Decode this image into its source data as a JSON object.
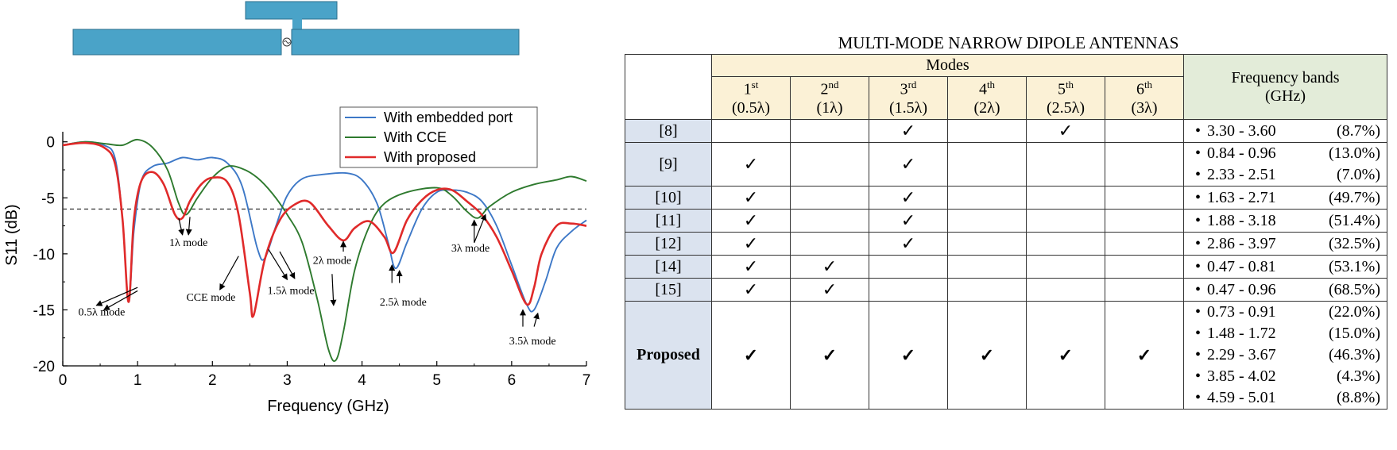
{
  "chart_data": {
    "type": "line",
    "xlabel": "Frequency (GHz)",
    "ylabel": "S11 (dB)",
    "xlim": [
      0,
      7
    ],
    "ylim": [
      -20,
      1
    ],
    "xticks": [
      "0",
      "1",
      "2",
      "3",
      "4",
      "5",
      "6",
      "7"
    ],
    "yticks": [
      "0",
      "-5",
      "-10",
      "-15",
      "-20"
    ],
    "threshold": -6,
    "legend_position": "top-right",
    "series": [
      {
        "name": "With embedded port",
        "color": "#3d78c7",
        "x": [
          0,
          0.3,
          0.55,
          0.7,
          0.8,
          0.88,
          0.95,
          1.05,
          1.2,
          1.4,
          1.6,
          1.8,
          2.0,
          2.2,
          2.4,
          2.6,
          2.7,
          2.85,
          3.0,
          3.2,
          3.5,
          3.8,
          4.0,
          4.2,
          4.35,
          4.45,
          4.6,
          4.8,
          5.0,
          5.2,
          5.4,
          5.6,
          5.8,
          6.0,
          6.2,
          6.3,
          6.45,
          6.6,
          6.8,
          7.0
        ],
        "y": [
          -0.3,
          0,
          -0.3,
          -1.5,
          -7,
          -14.3,
          -8,
          -3.5,
          -2.2,
          -1.9,
          -1.4,
          -1.6,
          -1.4,
          -1.9,
          -4,
          -9.5,
          -10.4,
          -7.5,
          -4.8,
          -3.3,
          -2.9,
          -2.8,
          -3.4,
          -5.5,
          -9,
          -11.3,
          -9,
          -6,
          -4.5,
          -4.3,
          -4.5,
          -5.3,
          -7.5,
          -11,
          -14.5,
          -15,
          -12.5,
          -9.5,
          -8,
          -7
        ]
      },
      {
        "name": "With CCE",
        "color": "#2e7a2e",
        "x": [
          0,
          0.3,
          0.6,
          0.8,
          1.0,
          1.2,
          1.4,
          1.55,
          1.65,
          1.8,
          2.0,
          2.2,
          2.4,
          2.6,
          2.8,
          3.0,
          3.2,
          3.4,
          3.55,
          3.65,
          3.75,
          3.9,
          4.1,
          4.3,
          4.6,
          5.0,
          5.2,
          5.4,
          5.55,
          5.7,
          6.0,
          6.3,
          6.6,
          6.8,
          7.0
        ],
        "y": [
          -0.3,
          0,
          -0.2,
          -0.3,
          0.2,
          -0.5,
          -2.5,
          -5.5,
          -6.5,
          -5,
          -3.2,
          -2.2,
          -2.4,
          -3.2,
          -4.6,
          -6.5,
          -9,
          -14,
          -18.5,
          -19.5,
          -17,
          -11.5,
          -7.5,
          -5.5,
          -4.5,
          -4.1,
          -4.8,
          -6.2,
          -6.8,
          -5.8,
          -4.5,
          -3.8,
          -3.4,
          -3.1,
          -3.5
        ]
      },
      {
        "name": "With proposed",
        "color": "#e02a2a",
        "x": [
          0,
          0.3,
          0.55,
          0.7,
          0.8,
          0.88,
          0.95,
          1.05,
          1.2,
          1.35,
          1.5,
          1.6,
          1.7,
          1.85,
          2.0,
          2.2,
          2.35,
          2.5,
          2.55,
          2.7,
          2.9,
          3.1,
          3.3,
          3.55,
          3.75,
          3.9,
          4.1,
          4.3,
          4.42,
          4.6,
          4.8,
          5.0,
          5.2,
          5.4,
          5.6,
          5.8,
          6.0,
          6.2,
          6.3,
          6.4,
          6.6,
          6.8,
          7.0
        ],
        "y": [
          -0.3,
          -0.1,
          -0.5,
          -2,
          -7,
          -14.3,
          -7,
          -3.5,
          -2.7,
          -3.8,
          -6.5,
          -6.8,
          -5.3,
          -3.8,
          -3.2,
          -3.6,
          -6.5,
          -13.5,
          -15.5,
          -10.5,
          -7,
          -5.6,
          -5.4,
          -7.5,
          -8.8,
          -7.7,
          -7.1,
          -8.5,
          -9.9,
          -7,
          -5.2,
          -4.3,
          -4.3,
          -5.3,
          -6.5,
          -8.5,
          -11.5,
          -14.5,
          -13,
          -10,
          -7.5,
          -7.3,
          -7.5
        ]
      }
    ],
    "annotations": [
      {
        "text": "0.5λ mode",
        "x": 0.52,
        "y": -15.5
      },
      {
        "text": "1λ mode",
        "x": 1.68,
        "y": -9.3
      },
      {
        "text": "CCE mode",
        "x": 1.98,
        "y": -14.2
      },
      {
        "text": "1.5λ mode",
        "x": 3.05,
        "y": -13.6
      },
      {
        "text": "2λ mode",
        "x": 3.6,
        "y": -10.9
      },
      {
        "text": "2.5λ mode",
        "x": 4.55,
        "y": -14.6
      },
      {
        "text": "3λ mode",
        "x": 5.45,
        "y": -9.8
      },
      {
        "text": "3.5λ mode",
        "x": 6.28,
        "y": -18.1
      }
    ]
  },
  "table": {
    "title": "MULTI-MODE NARROW DIPOLE ANTENNAS",
    "modes_header": "Modes",
    "freq_header_line1": "Frequency bands",
    "freq_header_line2": "(GHz)",
    "mode_columns": [
      {
        "ord": "1",
        "sup": "st",
        "sub": "(0.5λ)"
      },
      {
        "ord": "2",
        "sup": "nd",
        "sub": "(1λ)"
      },
      {
        "ord": "3",
        "sup": "rd",
        "sub": "(1.5λ)"
      },
      {
        "ord": "4",
        "sup": "th",
        "sub": "(2λ)"
      },
      {
        "ord": "5",
        "sup": "th",
        "sub": "(2.5λ)"
      },
      {
        "ord": "6",
        "sup": "th",
        "sub": "(3λ)"
      }
    ],
    "check_mark": "✓",
    "bullet": "•",
    "rows": [
      {
        "ref": "[8]",
        "modes": [
          false,
          false,
          true,
          false,
          true,
          false
        ],
        "bands": [
          [
            "3.30 - 3.60",
            "(8.7%)"
          ]
        ]
      },
      {
        "ref": "[9]",
        "modes": [
          true,
          false,
          true,
          false,
          false,
          false
        ],
        "bands": [
          [
            "0.84 - 0.96",
            "(13.0%)"
          ],
          [
            "2.33 - 2.51",
            "(7.0%)"
          ]
        ]
      },
      {
        "ref": "[10]",
        "modes": [
          true,
          false,
          true,
          false,
          false,
          false
        ],
        "bands": [
          [
            "1.63 - 2.71",
            "(49.7%)"
          ]
        ]
      },
      {
        "ref": "[11]",
        "modes": [
          true,
          false,
          true,
          false,
          false,
          false
        ],
        "bands": [
          [
            "1.88 - 3.18",
            "(51.4%)"
          ]
        ]
      },
      {
        "ref": "[12]",
        "modes": [
          true,
          false,
          true,
          false,
          false,
          false
        ],
        "bands": [
          [
            "2.86 - 3.97",
            "(32.5%)"
          ]
        ]
      },
      {
        "ref": "[14]",
        "modes": [
          true,
          true,
          false,
          false,
          false,
          false
        ],
        "bands": [
          [
            "0.47 - 0.81",
            "(53.1%)"
          ]
        ]
      },
      {
        "ref": "[15]",
        "modes": [
          true,
          true,
          false,
          false,
          false,
          false
        ],
        "bands": [
          [
            "0.47 - 0.96",
            "(68.5%)"
          ]
        ]
      },
      {
        "ref": "Proposed",
        "bold": true,
        "modes": [
          true,
          true,
          true,
          true,
          true,
          true
        ],
        "bands": [
          [
            "0.73 - 0.91",
            "(22.0%)"
          ],
          [
            "1.48 - 1.72",
            "(15.0%)"
          ],
          [
            "2.29 - 3.67",
            "(46.3%)"
          ],
          [
            "3.85 - 4.02",
            "(4.3%)"
          ],
          [
            "4.59 - 5.01",
            "(8.8%)"
          ]
        ]
      }
    ]
  },
  "colors": {
    "antenna": "#4aa3c8",
    "dashed": "#444444"
  }
}
